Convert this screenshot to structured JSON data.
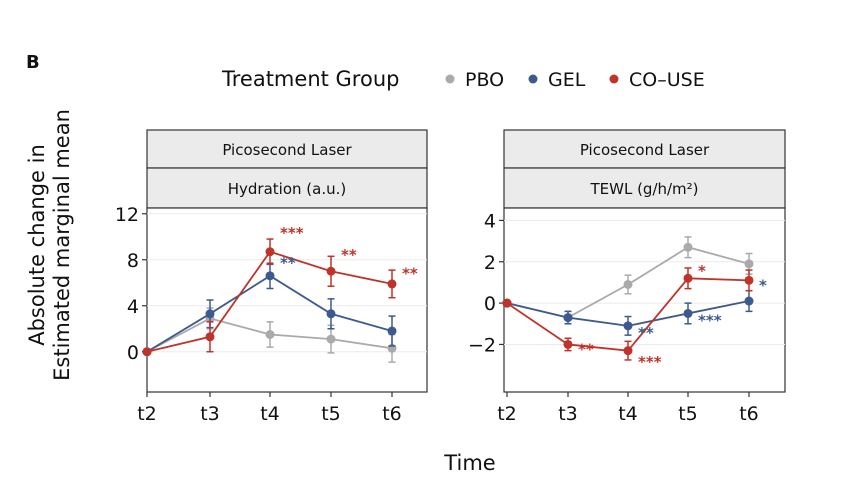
{
  "figure": {
    "panel_label": "B",
    "legend_title": "Treatment Group",
    "ylabel_line1": "Absolute change in",
    "ylabel_line2": "Estimated marginal mean",
    "xlabel": "Time"
  },
  "colors": {
    "PBO": "#aaaaaa",
    "GEL": "#3d5a8f",
    "CO-USE": "#c0332b"
  },
  "chart_data": [
    {
      "type": "line",
      "facet_top": "Picosecond Laser",
      "facet_bottom": "Hydration (a.u.)",
      "categories": [
        "t2",
        "t3",
        "t4",
        "t5",
        "t6"
      ],
      "ylim": [
        -3.5,
        12.5
      ],
      "yticks": [
        0,
        4,
        8,
        12
      ],
      "ytick_labels": [
        "0",
        "4",
        "8",
        "12"
      ],
      "series": [
        {
          "name": "PBO",
          "values": [
            0,
            2.9,
            1.5,
            1.1,
            0.3
          ],
          "err": [
            0,
            0.9,
            1.1,
            1.2,
            1.2
          ]
        },
        {
          "name": "GEL",
          "values": [
            0,
            3.3,
            6.6,
            3.3,
            1.8
          ],
          "err": [
            0,
            1.2,
            1.1,
            1.3,
            1.3
          ]
        },
        {
          "name": "CO-USE",
          "values": [
            0,
            1.3,
            8.7,
            7.0,
            5.9
          ],
          "err": [
            0,
            1.3,
            1.1,
            1.3,
            1.2
          ]
        }
      ],
      "annotations": [
        {
          "text": "***",
          "series": "CO-USE",
          "category": "t4",
          "y": 10.4
        },
        {
          "text": "**",
          "series": "GEL",
          "category": "t4",
          "y": 7.8
        },
        {
          "text": "**",
          "series": "CO-USE",
          "category": "t5",
          "y": 8.5
        },
        {
          "text": "**",
          "series": "CO-USE",
          "category": "t6",
          "y": 6.9
        }
      ]
    },
    {
      "type": "line",
      "facet_top": "Picosecond Laser",
      "facet_bottom": "TEWL (g/h/m²)",
      "categories": [
        "t2",
        "t3",
        "t4",
        "t5",
        "t6"
      ],
      "ylim": [
        -4.3,
        4.6
      ],
      "yticks": [
        -2,
        0,
        2,
        4
      ],
      "ytick_labels": [
        "−2",
        "0",
        "2",
        "4"
      ],
      "series": [
        {
          "name": "PBO",
          "values": [
            0,
            -0.7,
            0.9,
            2.7,
            1.9
          ],
          "err": [
            0,
            0.3,
            0.45,
            0.5,
            0.5
          ]
        },
        {
          "name": "GEL",
          "values": [
            0,
            -0.7,
            -1.1,
            -0.5,
            0.1
          ],
          "err": [
            0,
            0.3,
            0.45,
            0.5,
            0.5
          ]
        },
        {
          "name": "CO-USE",
          "values": [
            0,
            -2.0,
            -2.3,
            1.2,
            1.1
          ],
          "err": [
            0,
            0.3,
            0.45,
            0.5,
            0.5
          ]
        }
      ],
      "annotations": [
        {
          "text": "**",
          "series": "CO-USE",
          "category": "t3",
          "y": -2.2
        },
        {
          "text": "**",
          "series": "GEL",
          "category": "t4",
          "y": -1.4
        },
        {
          "text": "***",
          "series": "CO-USE",
          "category": "t4",
          "y": -2.8
        },
        {
          "text": "*",
          "series": "CO-USE",
          "category": "t5",
          "y": 1.6
        },
        {
          "text": "***",
          "series": "GEL",
          "category": "t5",
          "y": -0.8
        },
        {
          "text": "*",
          "series": "GEL",
          "category": "t6",
          "y": 0.9
        }
      ]
    }
  ]
}
